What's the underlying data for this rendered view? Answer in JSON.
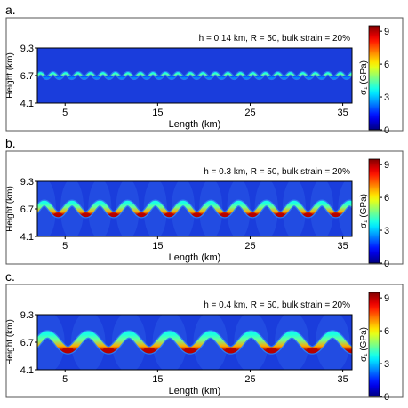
{
  "chart_data": [
    {
      "type": "heatmap",
      "panel_label": "a.",
      "title": "h = 0.14 km, R = 50, bulk strain = 20%",
      "xlabel": "Length (km)",
      "ylabel": "Height (km)",
      "xticks": [
        "5",
        "15",
        "25",
        "35"
      ],
      "yticks": [
        "4.1",
        "6.7",
        "9.3"
      ],
      "xlim": [
        2,
        36
      ],
      "ylim": [
        4.1,
        9.3
      ],
      "colorbar": {
        "label": "σ₁ (GPa)",
        "ticks": [
          "0",
          "3",
          "6",
          "9"
        ],
        "range": [
          0,
          9.5
        ]
      },
      "layer": {
        "h_km": 0.14,
        "R": 50,
        "bulk_strain_percent": 20,
        "center_km": 6.7,
        "amplitude_km": 0.22,
        "wavelength_km": 1.35,
        "peak_stress_gpa": 2.5
      }
    },
    {
      "type": "heatmap",
      "panel_label": "b.",
      "title": "h = 0.3 km, R = 50, bulk strain = 20%",
      "xlabel": "Length (km)",
      "ylabel": "Height (km)",
      "xticks": [
        "5",
        "15",
        "25",
        "35"
      ],
      "yticks": [
        "4.1",
        "6.7",
        "9.3"
      ],
      "xlim": [
        2,
        36
      ],
      "ylim": [
        4.1,
        9.3
      ],
      "colorbar": {
        "label": "σ₁ (GPa)",
        "ticks": [
          "0",
          "3",
          "6",
          "9"
        ],
        "range": [
          0,
          9.5
        ]
      },
      "layer": {
        "h_km": 0.3,
        "R": 50,
        "bulk_strain_percent": 20,
        "center_km": 6.7,
        "amplitude_km": 0.55,
        "wavelength_km": 3.0,
        "peak_stress_gpa": 9.0
      }
    },
    {
      "type": "heatmap",
      "panel_label": "c.",
      "title": "h = 0.4 km, R = 50, bulk strain = 20%",
      "xlabel": "Length (km)",
      "ylabel": "Height (km)",
      "xticks": [
        "5",
        "15",
        "25",
        "35"
      ],
      "yticks": [
        "4.1",
        "6.7",
        "9.3"
      ],
      "xlim": [
        2,
        36
      ],
      "ylim": [
        4.1,
        9.3
      ],
      "colorbar": {
        "label": "σ₁ (GPa)",
        "ticks": [
          "0",
          "3",
          "6",
          "9"
        ],
        "range": [
          0,
          9.5
        ]
      },
      "layer": {
        "h_km": 0.4,
        "R": 50,
        "bulk_strain_percent": 20,
        "center_km": 6.7,
        "amplitude_km": 0.75,
        "wavelength_km": 4.4,
        "peak_stress_gpa": 9.0
      }
    }
  ]
}
